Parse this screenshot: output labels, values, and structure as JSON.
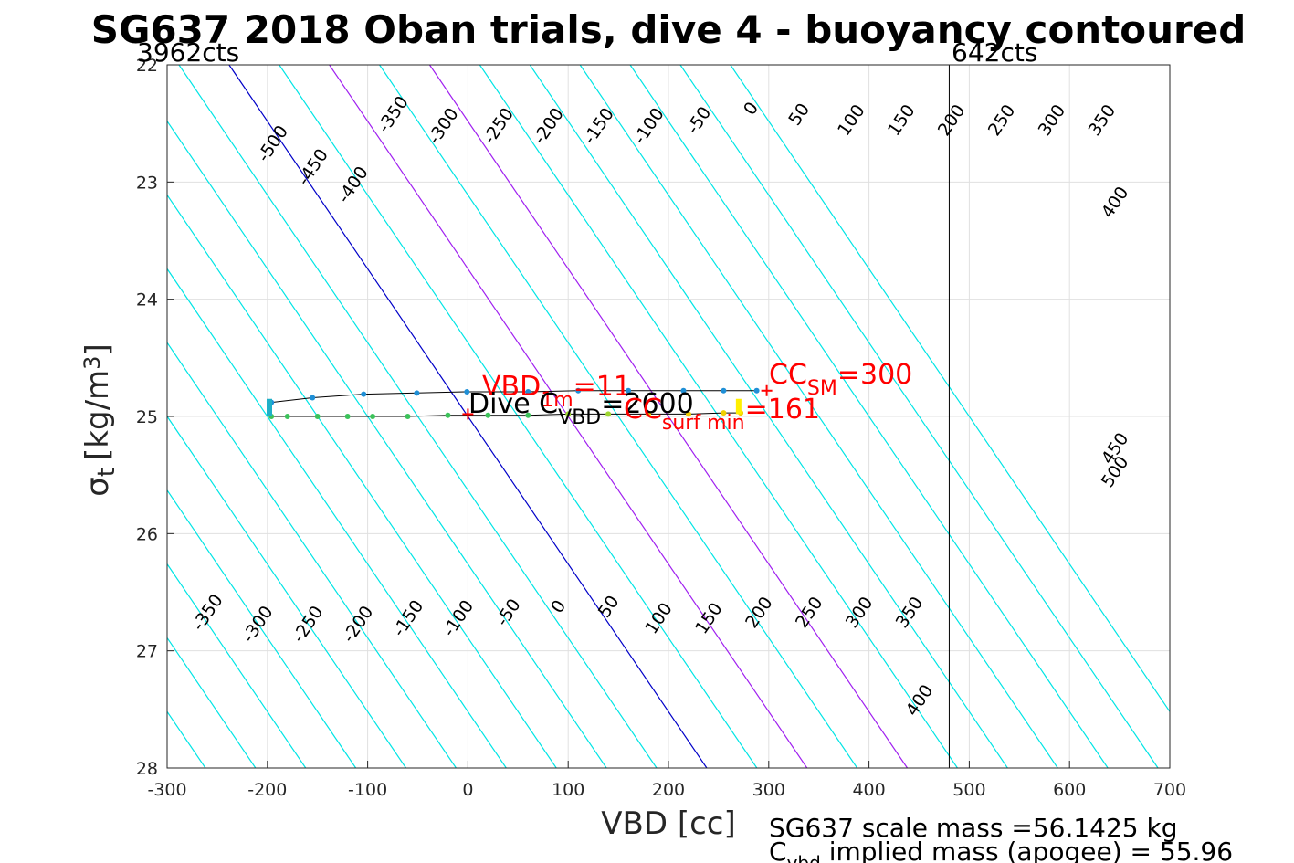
{
  "chart_data": {
    "type": "line",
    "title": "SG637 2018 Oban trials, dive 4 - buoyancy contoured",
    "xlabel": "VBD [cc]",
    "ylabel": "σ_t [kg/m^3]",
    "xlim": [
      -300,
      700
    ],
    "ylim": [
      22,
      28
    ],
    "y_reversed": true,
    "grid": true,
    "x_ticks": [
      "-300",
      "-200",
      "-100",
      "0",
      "100",
      "200",
      "300",
      "400",
      "500",
      "600",
      "700"
    ],
    "y_ticks": [
      "22",
      "23",
      "24",
      "25",
      "26",
      "27",
      "28"
    ],
    "vbd_limit_labels": {
      "min_counts": "3962cts",
      "max_counts": "642cts"
    },
    "vbd_limit_x": 480,
    "contours": {
      "slope_cc_per_sigma": 79.4,
      "levels": [
        -500,
        -450,
        -400,
        -350,
        -300,
        -250,
        -200,
        -150,
        -100,
        -50,
        0,
        50,
        100,
        150,
        200,
        250,
        300,
        350,
        400,
        450,
        500
      ],
      "top_labels": [
        {
          "level": -500,
          "x": -190,
          "y": 22.7
        },
        {
          "level": -450,
          "x": -150,
          "y": 22.9
        },
        {
          "level": -400,
          "x": -110,
          "y": 23.05
        },
        {
          "level": -350,
          "x": -70,
          "y": 22.45
        },
        {
          "level": -300,
          "x": -20,
          "y": 22.55
        },
        {
          "level": -250,
          "x": 35,
          "y": 22.55
        },
        {
          "level": -200,
          "x": 85,
          "y": 22.55
        },
        {
          "level": -150,
          "x": 135,
          "y": 22.55
        },
        {
          "level": -100,
          "x": 185,
          "y": 22.55
        },
        {
          "level": -50,
          "x": 235,
          "y": 22.5
        },
        {
          "level": 0,
          "x": 287,
          "y": 22.4
        },
        {
          "level": 50,
          "x": 335,
          "y": 22.45
        },
        {
          "level": 100,
          "x": 387,
          "y": 22.5
        },
        {
          "level": 150,
          "x": 437,
          "y": 22.5
        },
        {
          "level": 200,
          "x": 487,
          "y": 22.5
        },
        {
          "level": 250,
          "x": 537,
          "y": 22.5
        },
        {
          "level": 300,
          "x": 587,
          "y": 22.5
        },
        {
          "level": 350,
          "x": 637,
          "y": 22.5
        },
        {
          "level": 400,
          "x": 650,
          "y": 23.2
        },
        {
          "level": 450,
          "x": 650,
          "y": 25.3
        },
        {
          "level": 500,
          "x": 650,
          "y": 25.5
        }
      ],
      "bottom_labels": [
        {
          "level": -350,
          "x": -255,
          "y": 26.7
        },
        {
          "level": -300,
          "x": -205,
          "y": 26.8
        },
        {
          "level": -250,
          "x": -155,
          "y": 26.8
        },
        {
          "level": -200,
          "x": -105,
          "y": 26.8
        },
        {
          "level": -150,
          "x": -55,
          "y": 26.75
        },
        {
          "level": -100,
          "x": -5,
          "y": 26.75
        },
        {
          "level": -50,
          "x": 45,
          "y": 26.7
        },
        {
          "level": 0,
          "x": 95,
          "y": 26.65
        },
        {
          "level": 50,
          "x": 145,
          "y": 26.65
        },
        {
          "level": 100,
          "x": 195,
          "y": 26.75
        },
        {
          "level": 150,
          "x": 245,
          "y": 26.75
        },
        {
          "level": 200,
          "x": 295,
          "y": 26.7
        },
        {
          "level": 250,
          "x": 345,
          "y": 26.7
        },
        {
          "level": 300,
          "x": 395,
          "y": 26.7
        },
        {
          "level": 350,
          "x": 445,
          "y": 26.7
        },
        {
          "level": 400,
          "x": 455,
          "y": 27.45
        }
      ]
    },
    "series": [
      {
        "points": [
          [
            -196,
            24.88
          ],
          [
            -155,
            24.84
          ],
          [
            -104,
            24.81
          ],
          [
            -51,
            24.8
          ],
          [
            -1,
            24.79
          ],
          [
            60,
            24.79
          ],
          [
            110,
            24.78
          ],
          [
            160,
            24.78
          ],
          [
            215,
            24.78
          ],
          [
            255,
            24.78
          ],
          [
            288,
            24.78
          ]
        ]
      },
      {
        "points": [
          [
            -196,
            25.0
          ],
          [
            -180,
            25.0
          ],
          [
            -150,
            25.0
          ],
          [
            -120,
            25.0
          ],
          [
            -95,
            25.0
          ],
          [
            -60,
            25.0
          ],
          [
            -20,
            24.99
          ],
          [
            20,
            24.99
          ],
          [
            60,
            24.99
          ],
          [
            100,
            24.98
          ],
          [
            140,
            24.98
          ],
          [
            180,
            24.98
          ],
          [
            220,
            24.98
          ],
          [
            255,
            24.97
          ],
          [
            272,
            24.97
          ]
        ]
      }
    ],
    "annotations": {
      "vbd_marker": {
        "x": 0,
        "y": 24.98
      },
      "cc_marker": {
        "x": 298,
        "y": 24.78
      },
      "vbd_label_prefix": "VBD",
      "vbd_label_sub": "1m",
      "vbd_label_value": "=11",
      "dive_c_prefix": "Dive C",
      "dive_c_sub": "VBD",
      "dive_c_value": "=2600",
      "cc_surf_prefix": "CC",
      "cc_surf_sub": "surf min",
      "cc_surf_value": "=161",
      "cc_sm_prefix": "CC",
      "cc_sm_sub": "SM",
      "cc_sm_value": "=300"
    },
    "footer": {
      "line1": "SG637 scale mass =56.1425 kg",
      "line2_prefix": "C",
      "line2_sub": "vbd",
      "line2_rest": " implied mass (apogee) = 55.96"
    },
    "colors": {
      "contour": "#00e5e5",
      "zero_contour": "#0000c8",
      "purple_contour": "#a020f0",
      "annotation": "#ff0000",
      "grid": "#e0e0e0"
    }
  }
}
